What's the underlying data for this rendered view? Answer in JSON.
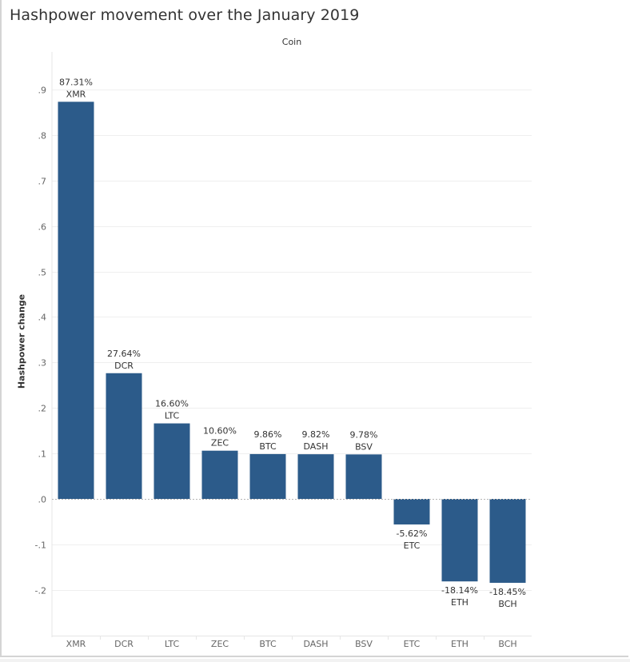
{
  "title": "Hashpower movement over the January 2019",
  "header_label": "Coin",
  "chart_data": {
    "type": "bar",
    "title": "Hashpower movement over the January 2019",
    "xlabel": "Coin",
    "ylabel": "Hashpower change",
    "categories": [
      "XMR",
      "DCR",
      "LTC",
      "ZEC",
      "BTC",
      "DASH",
      "BSV",
      "ETC",
      "ETH",
      "BCH"
    ],
    "values": [
      0.8731,
      0.2764,
      0.166,
      0.106,
      0.0986,
      0.0982,
      0.0978,
      -0.0562,
      -0.1814,
      -0.1845
    ],
    "data_labels": [
      "87.31%",
      "27.64%",
      "16.60%",
      "10.60%",
      "9.86%",
      "9.82%",
      "9.78%",
      "-5.62%",
      "-18.14%",
      "-18.45%"
    ],
    "y_ticks": [
      0.9,
      0.8,
      0.7,
      0.6,
      0.5,
      0.4,
      0.3,
      0.2,
      0.1,
      0.0,
      -0.1,
      -0.2
    ],
    "y_tick_labels": [
      ".9",
      ".8",
      ".7",
      ".6",
      ".5",
      ".4",
      ".3",
      ".2",
      ".1",
      ".0",
      "-.1",
      "-.2"
    ],
    "ylim": [
      -0.3,
      0.94
    ],
    "grid": true,
    "legend": "none",
    "bar_color": "#2c5b8a"
  }
}
